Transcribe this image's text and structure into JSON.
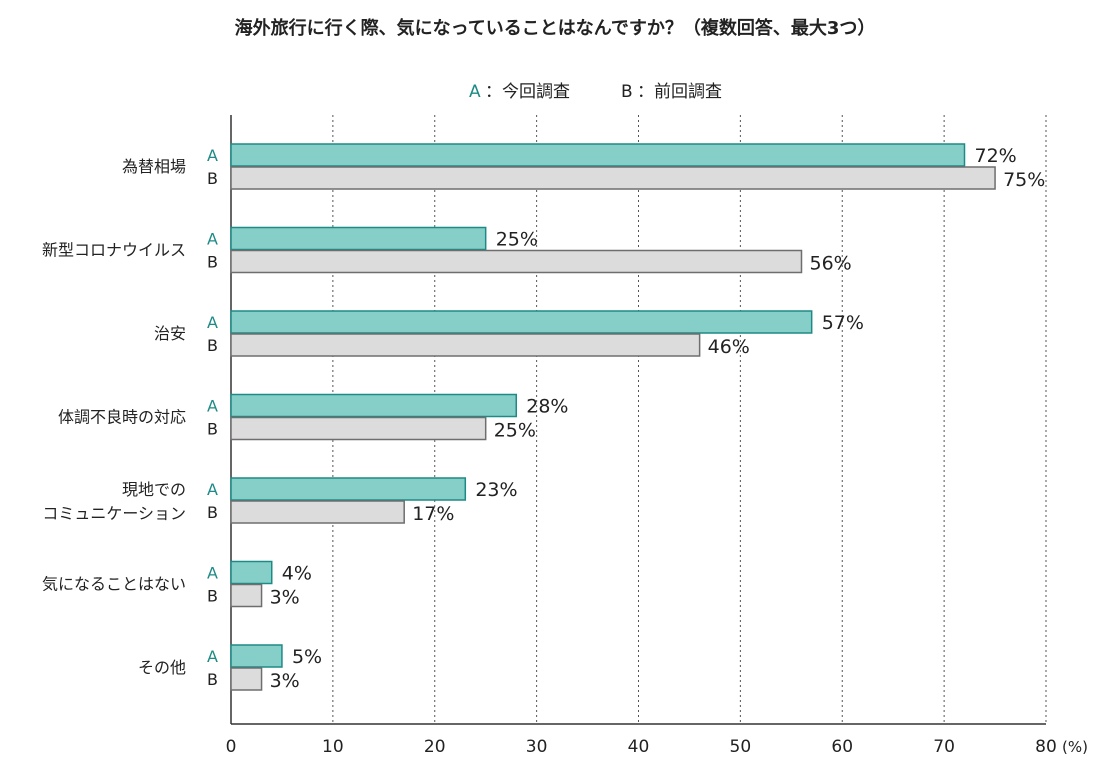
{
  "chart_data": {
    "type": "bar",
    "orientation": "horizontal",
    "title": "海外旅行に行く際、気になっていることはなんですか？（複数回答、最大3つ）",
    "legend": {
      "placement": "top-center",
      "entries": [
        {
          "key": "A",
          "label": "：今回調査"
        },
        {
          "key": "B",
          "label": "：前回調査"
        }
      ]
    },
    "unit_label": "(%)",
    "xlim": [
      0,
      80
    ],
    "xticks": [
      0,
      10,
      20,
      30,
      40,
      50,
      60,
      70,
      80
    ],
    "grid": "vertical-dotted",
    "categories": [
      [
        "為替相場"
      ],
      [
        "新型コロナウイルス"
      ],
      [
        "治安"
      ],
      [
        "体調不良時の対応"
      ],
      [
        "現地での",
        "コミュニケーション"
      ],
      [
        "気になることはない"
      ],
      [
        "その他"
      ]
    ],
    "series": [
      {
        "key": "A",
        "name": "今回調査",
        "values": [
          72,
          25,
          57,
          28,
          23,
          4,
          5
        ],
        "labels": [
          "72%",
          "25%",
          "57%",
          "28%",
          "23%",
          "4%",
          "5%"
        ]
      },
      {
        "key": "B",
        "name": "前回調査",
        "values": [
          75,
          56,
          46,
          25,
          17,
          3,
          3
        ],
        "labels": [
          "75%",
          "56%",
          "46%",
          "25%",
          "17%",
          "3%",
          "3%"
        ]
      }
    ],
    "colors": {
      "A_fill": "#86cfc8",
      "A_stroke": "#1e8a86",
      "A_text": "#1e8a86",
      "B_fill": "#dcdcdc",
      "B_stroke": "#6e6e6e",
      "B_text": "#222222"
    }
  }
}
